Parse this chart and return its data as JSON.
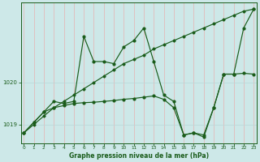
{
  "xlabel": "Graphe pression niveau de la mer (hPa)",
  "background_color": "#cde8e8",
  "grid_color_v": "#e8b0b0",
  "grid_color_h": "#b8d8d8",
  "line_color": "#1a5c1a",
  "x_ticks": [
    0,
    1,
    2,
    3,
    4,
    5,
    6,
    7,
    8,
    9,
    10,
    11,
    12,
    13,
    14,
    15,
    16,
    17,
    18,
    19,
    20,
    21,
    22,
    23
  ],
  "y_ticks": [
    1019,
    1020
  ],
  "ylim": [
    1018.55,
    1021.9
  ],
  "xlim": [
    -0.3,
    23.3
  ],
  "line1_x": [
    0,
    1,
    2,
    3,
    4,
    5,
    6,
    7,
    8,
    9,
    10,
    11,
    12,
    13,
    14,
    15,
    16,
    17,
    18,
    19,
    20,
    21,
    22,
    23
  ],
  "line1_y": [
    1018.8,
    1019.05,
    1019.3,
    1019.55,
    1019.5,
    1019.55,
    1021.1,
    1020.5,
    1020.5,
    1020.45,
    1020.85,
    1021.0,
    1021.3,
    1020.5,
    1019.7,
    1019.55,
    1018.75,
    1018.8,
    1018.7,
    1019.4,
    1020.2,
    1020.2,
    1021.3,
    1021.75
  ],
  "line2_x": [
    0,
    1,
    2,
    3,
    4,
    5,
    6,
    7,
    8,
    9,
    10,
    11,
    12,
    13,
    14,
    15,
    16,
    17,
    18,
    19,
    20,
    21,
    22,
    23
  ],
  "line2_y": [
    1018.8,
    1019.0,
    1019.2,
    1019.4,
    1019.55,
    1019.7,
    1019.85,
    1020.0,
    1020.15,
    1020.3,
    1020.45,
    1020.55,
    1020.65,
    1020.8,
    1020.9,
    1021.0,
    1021.1,
    1021.2,
    1021.3,
    1021.4,
    1021.5,
    1021.6,
    1021.7,
    1021.75
  ],
  "line3_x": [
    0,
    1,
    2,
    3,
    4,
    5,
    6,
    7,
    8,
    9,
    10,
    11,
    12,
    13,
    14,
    15,
    16,
    17,
    18,
    19,
    20,
    21,
    22,
    23
  ],
  "line3_y": [
    1018.8,
    1019.05,
    1019.3,
    1019.4,
    1019.45,
    1019.5,
    1019.52,
    1019.53,
    1019.55,
    1019.57,
    1019.6,
    1019.62,
    1019.65,
    1019.68,
    1019.6,
    1019.4,
    1018.75,
    1018.8,
    1018.75,
    1019.4,
    1020.2,
    1020.2,
    1020.22,
    1020.2
  ]
}
